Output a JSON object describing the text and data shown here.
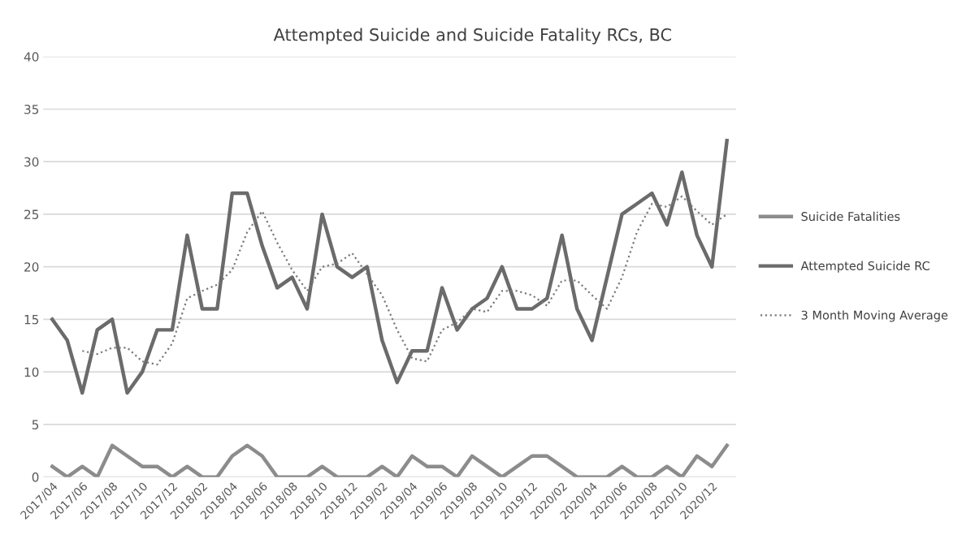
{
  "chart_data": {
    "type": "line",
    "title": "Attempted Suicide and Suicide Fatality RCs, BC",
    "categories": [
      "2017/04",
      null,
      "2017/06",
      null,
      "2017/08",
      null,
      "2017/10",
      null,
      "2017/12",
      null,
      "2018/02",
      null,
      "2018/04",
      null,
      "2018/06",
      null,
      "2018/08",
      null,
      "2018/10",
      null,
      "2018/12",
      null,
      "2019/02",
      null,
      "2019/04",
      null,
      "2019/06",
      null,
      "2019/08",
      null,
      "2019/10",
      null,
      "2019/12",
      null,
      "2020/02",
      null,
      "2020/04",
      null,
      "2020/06",
      null,
      "2020/08",
      null,
      "2020/10",
      null,
      "2020/12",
      null
    ],
    "series": [
      {
        "name": "Suicide Fatalities",
        "color": "#8c8c8c",
        "line_style": "solid",
        "values": [
          1,
          0,
          1,
          0,
          3,
          2,
          1,
          1,
          0,
          1,
          0,
          0,
          2,
          3,
          2,
          0,
          0,
          0,
          1,
          0,
          0,
          0,
          1,
          0,
          2,
          1,
          1,
          0,
          2,
          1,
          0,
          1,
          2,
          2,
          1,
          0,
          0,
          0,
          1,
          0,
          0,
          1,
          0,
          2,
          1,
          3
        ]
      },
      {
        "name": "Attempted Suicide RC",
        "color": "#6b6b6b",
        "line_style": "solid",
        "values": [
          15,
          13,
          8,
          14,
          15,
          8,
          10,
          14,
          14,
          23,
          16,
          16,
          27,
          27,
          22,
          18,
          19,
          16,
          25,
          20,
          19,
          20,
          13,
          9,
          12,
          12,
          18,
          14,
          16,
          17,
          20,
          16,
          16,
          17,
          23,
          16,
          13,
          19,
          25,
          26,
          27,
          24,
          29,
          23,
          20,
          32
        ]
      },
      {
        "name": "3 Month Moving Average",
        "color": "#7a7a7a",
        "line_style": "dotted",
        "values": [
          null,
          null,
          12,
          11.7,
          12.3,
          12.3,
          11,
          10.7,
          12.7,
          17,
          17.7,
          18.3,
          19.7,
          23.3,
          25.3,
          22.3,
          19.7,
          17.7,
          20,
          20.3,
          21.3,
          19.3,
          17.3,
          14,
          11.3,
          11,
          14,
          14.7,
          16,
          15.7,
          17.7,
          17.7,
          17.3,
          16.3,
          18.7,
          18.7,
          17.3,
          16,
          19,
          23.3,
          26,
          25.7,
          26.7,
          25.3,
          24,
          25
        ]
      }
    ],
    "ylim": [
      0,
      40
    ],
    "yticks": [
      0,
      5,
      10,
      15,
      20,
      25,
      30,
      35,
      40
    ],
    "grid": "y",
    "legend": "right",
    "marker": "none"
  }
}
